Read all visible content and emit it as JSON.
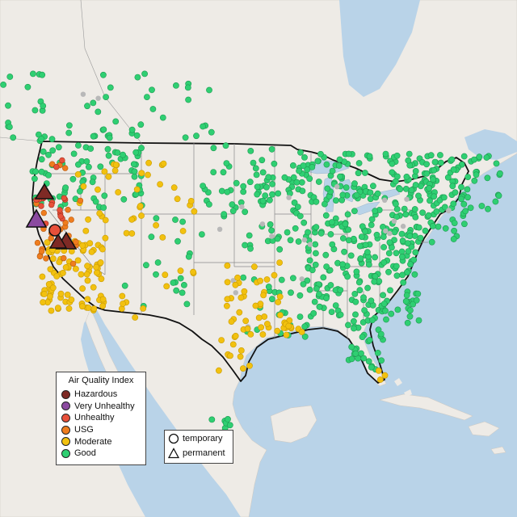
{
  "colors": {
    "water": "#b9d3e8",
    "land": "#eeebe6",
    "hazardous": "#7e2a25",
    "very_unhealthy": "#8b4aa0",
    "unhealthy": "#e8503a",
    "usg": "#ef7d1e",
    "moderate": "#f2c10f",
    "good": "#2fcf72",
    "no_data": "#b8b8b8"
  },
  "legend": {
    "title": "Air Quality Index",
    "items": [
      {
        "label": "Hazardous",
        "color": "#7e2a25"
      },
      {
        "label": "Very Unhealthy",
        "color": "#8b4aa0"
      },
      {
        "label": "Unhealthy",
        "color": "#e8503a"
      },
      {
        "label": "USG",
        "color": "#ef7d1e"
      },
      {
        "label": "Moderate",
        "color": "#f2c10f"
      },
      {
        "label": "Good",
        "color": "#2fcf72"
      }
    ]
  },
  "shape_legend": {
    "items": [
      {
        "label": "temporary",
        "shape": "circle-icon"
      },
      {
        "label": "permanent",
        "shape": "triangle-icon"
      }
    ]
  }
}
